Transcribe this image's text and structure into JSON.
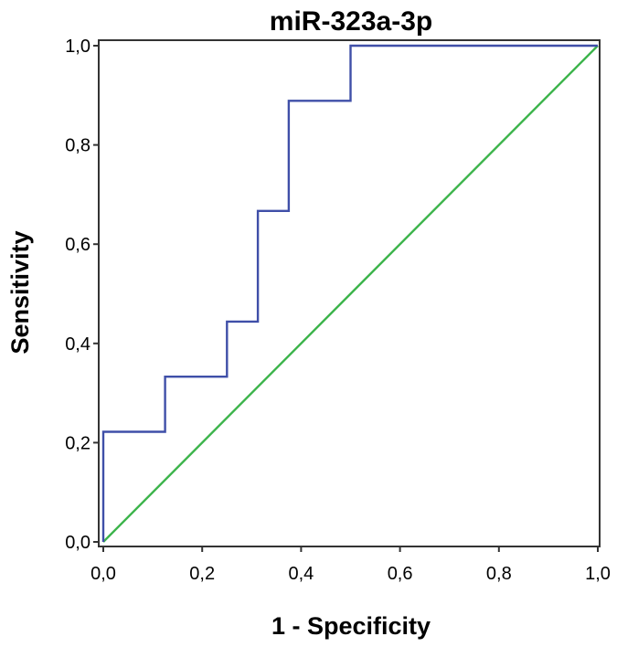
{
  "chart_data": {
    "type": "line",
    "title": "miR-323a-3p",
    "xlabel": "1 - Specificity",
    "ylabel": "Sensitivity",
    "xlim": [
      0,
      1
    ],
    "ylim": [
      0,
      1
    ],
    "x_ticks": [
      "0,0",
      "0,2",
      "0,4",
      "0,6",
      "0,8",
      "1,0"
    ],
    "y_ticks": [
      "0,0",
      "0,2",
      "0,4",
      "0,6",
      "0,8",
      "1,0"
    ],
    "grid": false,
    "series": [
      {
        "color": "#3f4fa8",
        "x": [
          0,
          0,
          0.125,
          0.125,
          0.25,
          0.25,
          0.3125,
          0.3125,
          0.375,
          0.375,
          0.5,
          0.5,
          1.0
        ],
        "y": [
          0,
          0.222,
          0.222,
          0.333,
          0.333,
          0.444,
          0.444,
          0.667,
          0.667,
          0.889,
          0.889,
          1.0,
          1.0
        ]
      },
      {
        "color": "#3cb44b",
        "x": [
          0,
          1
        ],
        "y": [
          0,
          1
        ]
      }
    ]
  }
}
